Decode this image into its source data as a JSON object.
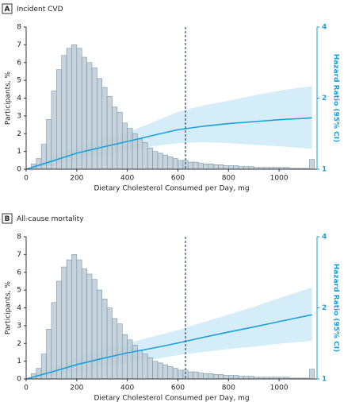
{
  "chart_data": [
    {
      "type": "histogram-line",
      "panel_label": "A",
      "title": "Incident CVD",
      "xlabel": "Dietary Cholesterol Consumed per Day, mg",
      "ylabel": "Participants, %",
      "y2label": "Hazard Ratio (95% CI)",
      "xlim": [
        0,
        1150
      ],
      "xticks": [
        0,
        200,
        400,
        600,
        800,
        1000
      ],
      "ylim": [
        0,
        8
      ],
      "yticks": [
        0,
        1,
        2,
        3,
        4,
        5,
        6,
        7,
        8
      ],
      "y2lim": [
        1,
        4
      ],
      "y2ticks": [
        1,
        2,
        4
      ],
      "y2log": true,
      "vline": 630,
      "bins": [
        20,
        40,
        60,
        80,
        100,
        120,
        140,
        160,
        180,
        200,
        220,
        240,
        260,
        280,
        300,
        320,
        340,
        360,
        380,
        400,
        420,
        440,
        460,
        480,
        500,
        520,
        540,
        560,
        580,
        600,
        620,
        640,
        660,
        680,
        700,
        720,
        740,
        760,
        780,
        800,
        820,
        840,
        860,
        880,
        900,
        920,
        940,
        960,
        980,
        1000,
        1020,
        1040,
        1060,
        1080,
        1100,
        1120,
        1140
      ],
      "counts": [
        0.3,
        0.6,
        1.4,
        2.8,
        4.4,
        5.6,
        6.4,
        6.8,
        7.0,
        6.8,
        6.3,
        6.0,
        5.7,
        5.1,
        4.6,
        4.1,
        3.5,
        3.2,
        2.6,
        2.3,
        2.0,
        1.7,
        1.5,
        1.2,
        1.0,
        0.9,
        0.8,
        0.7,
        0.6,
        0.5,
        0.5,
        0.4,
        0.4,
        0.35,
        0.3,
        0.3,
        0.25,
        0.25,
        0.2,
        0.2,
        0.2,
        0.15,
        0.15,
        0.15,
        0.1,
        0.1,
        0.1,
        0.1,
        0.1,
        0.1,
        0.1,
        0.05,
        0.05,
        0.05,
        0.05,
        0.55
      ],
      "bar_color": "#bccbd6",
      "series": [
        {
          "axis": "y2",
          "color": "#1aa0d8",
          "band_color": "#d4edf9",
          "x": [
            0,
            100,
            200,
            300,
            400,
            500,
            600,
            700,
            800,
            900,
            1000,
            1130
          ],
          "values": [
            1,
            1.08,
            1.17,
            1.24,
            1.31,
            1.39,
            1.47,
            1.52,
            1.56,
            1.59,
            1.62,
            1.65
          ],
          "lower": [
            1,
            1.04,
            1.1,
            1.15,
            1.2,
            1.25,
            1.29,
            1.3,
            1.29,
            1.27,
            1.25,
            1.22
          ],
          "upper": [
            1,
            1.12,
            1.24,
            1.34,
            1.43,
            1.58,
            1.75,
            1.86,
            1.95,
            2.05,
            2.15,
            2.25
          ]
        }
      ]
    },
    {
      "type": "histogram-line",
      "panel_label": "B",
      "title": "All-cause mortality",
      "xlabel": "Dietary Cholesterol Consumed per Day, mg",
      "ylabel": "Participants, %",
      "y2label": "Hazard Ratio (95% CI)",
      "xlim": [
        0,
        1150
      ],
      "xticks": [
        0,
        200,
        400,
        600,
        800,
        1000
      ],
      "ylim": [
        0,
        8
      ],
      "yticks": [
        0,
        1,
        2,
        3,
        4,
        5,
        6,
        7,
        8
      ],
      "y2lim": [
        1,
        4
      ],
      "y2ticks": [
        1,
        2,
        4
      ],
      "y2log": true,
      "vline": 630,
      "bins": [
        20,
        40,
        60,
        80,
        100,
        120,
        140,
        160,
        180,
        200,
        220,
        240,
        260,
        280,
        300,
        320,
        340,
        360,
        380,
        400,
        420,
        440,
        460,
        480,
        500,
        520,
        540,
        560,
        580,
        600,
        620,
        640,
        660,
        680,
        700,
        720,
        740,
        760,
        780,
        800,
        820,
        840,
        860,
        880,
        900,
        920,
        940,
        960,
        980,
        1000,
        1020,
        1040,
        1060,
        1080,
        1100,
        1120,
        1140
      ],
      "counts": [
        0.3,
        0.6,
        1.4,
        2.8,
        4.3,
        5.5,
        6.3,
        6.7,
        7.0,
        6.7,
        6.2,
        5.9,
        5.6,
        5.0,
        4.5,
        4.0,
        3.4,
        3.1,
        2.5,
        2.2,
        1.9,
        1.6,
        1.4,
        1.2,
        1.0,
        0.9,
        0.8,
        0.7,
        0.6,
        0.5,
        0.5,
        0.4,
        0.4,
        0.35,
        0.3,
        0.3,
        0.25,
        0.25,
        0.2,
        0.2,
        0.2,
        0.15,
        0.15,
        0.15,
        0.1,
        0.1,
        0.1,
        0.1,
        0.1,
        0.1,
        0.1,
        0.05,
        0.05,
        0.05,
        0.05,
        0.55
      ],
      "bar_color": "#bccbd6",
      "series": [
        {
          "axis": "y2",
          "color": "#1aa0d8",
          "band_color": "#d4edf9",
          "x": [
            0,
            100,
            200,
            300,
            400,
            500,
            600,
            700,
            800,
            900,
            1000,
            1130
          ],
          "values": [
            1,
            1.07,
            1.15,
            1.22,
            1.29,
            1.35,
            1.42,
            1.5,
            1.58,
            1.66,
            1.75,
            1.87
          ],
          "lower": [
            1,
            1.03,
            1.08,
            1.12,
            1.17,
            1.21,
            1.26,
            1.3,
            1.34,
            1.37,
            1.41,
            1.45
          ],
          "upper": [
            1,
            1.11,
            1.23,
            1.33,
            1.42,
            1.51,
            1.61,
            1.74,
            1.87,
            2.02,
            2.2,
            2.44
          ]
        }
      ]
    }
  ]
}
